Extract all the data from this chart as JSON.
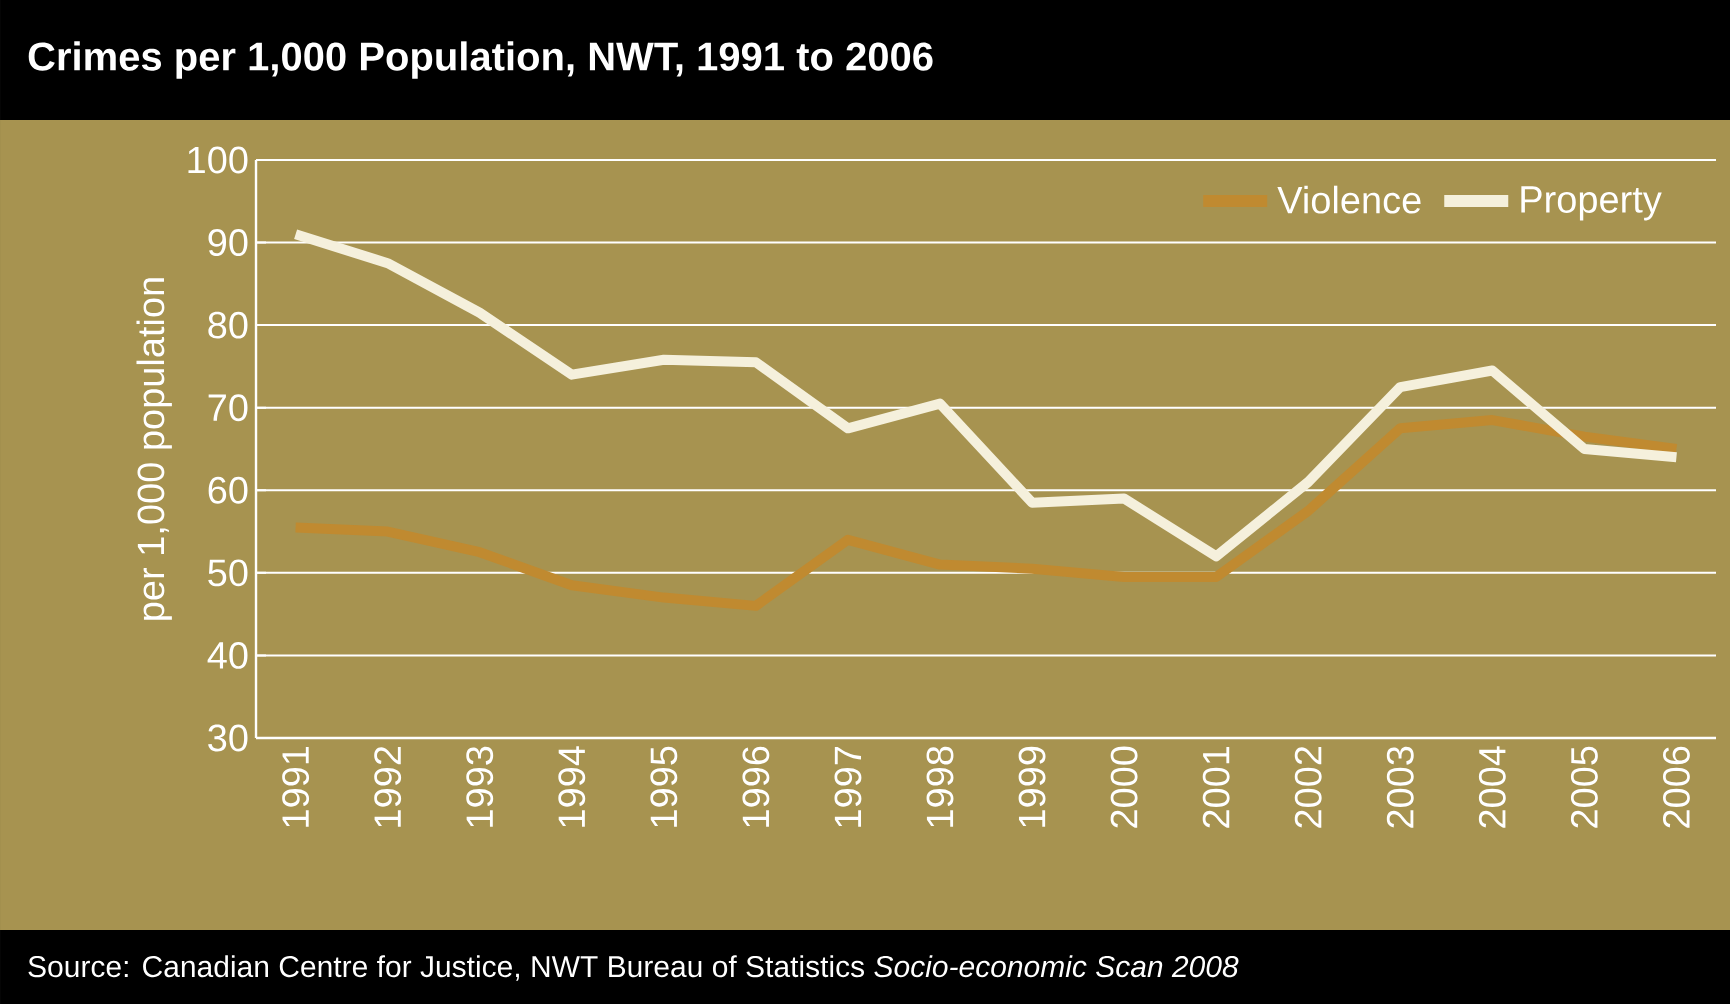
{
  "chart_data": {
    "type": "line",
    "title": "Crimes per 1,000 Population, NWT, 1991 to 2006",
    "ylabel": "per 1,000 population",
    "categories": [
      "1991",
      "1992",
      "1993",
      "1994",
      "1995",
      "1996",
      "1997",
      "1998",
      "1999",
      "2000",
      "2001",
      "2002",
      "2003",
      "2004",
      "2005",
      "2006"
    ],
    "series": [
      {
        "name": "Violence",
        "color": "#c08a30",
        "values": [
          55.5,
          55,
          52.5,
          48.5,
          47,
          46,
          54,
          51,
          50.5,
          49.5,
          49.5,
          57.5,
          67.5,
          68.5,
          66.5,
          65
        ]
      },
      {
        "name": "Property",
        "color": "#f5f0dc",
        "values": [
          91,
          87.5,
          81.5,
          74,
          75.8,
          75.5,
          67.5,
          70.5,
          58.5,
          59,
          52,
          61,
          72.5,
          74.5,
          65,
          64
        ]
      }
    ],
    "ylim": [
      30,
      100
    ],
    "yticks": [
      30,
      40,
      50,
      60,
      70,
      80,
      90,
      100
    ],
    "grid": "y",
    "legend": "top right",
    "annotations": [
      "Source: Canadian Centre for Justice, NWT Bureau of Statistics *Socio-economic Scan 2008*"
    ]
  }
}
